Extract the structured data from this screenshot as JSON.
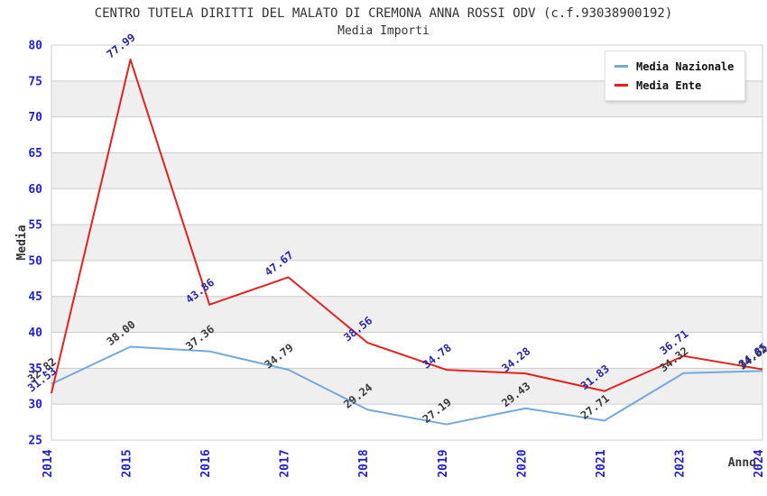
{
  "title": "CENTRO TUTELA DIRITTI DEL MALATO DI CREMONA ANNA ROSSI ODV (c.f.93038900192)",
  "subtitle": "Media Importi",
  "chart_data": {
    "type": "line",
    "categories": [
      "2014",
      "2015",
      "2016",
      "2017",
      "2018",
      "2019",
      "2020",
      "2021",
      "2023",
      "2024"
    ],
    "series": [
      {
        "name": "Media Nazionale",
        "color": "#74a9dc",
        "label_color": "#3a3a3a",
        "values": [
          32.82,
          38.0,
          37.36,
          34.79,
          29.24,
          27.19,
          29.43,
          27.71,
          34.32,
          34.62
        ]
      },
      {
        "name": "Media Ente",
        "color": "#e42020",
        "label_color": "#2828aa",
        "values": [
          31.53,
          77.99,
          43.86,
          47.67,
          38.56,
          34.78,
          34.28,
          31.83,
          36.71,
          34.85
        ]
      }
    ],
    "xlabel": "Anno",
    "ylabel": "Media",
    "ylim": [
      25,
      80
    ],
    "ytick_step": 5,
    "grid": true,
    "legend_position": "top-right",
    "colors": {
      "tick_label": "#2222cc",
      "grid_line": "#cccccc",
      "band_fill": "#efefef",
      "axis_title": "#333333",
      "title_text": "#333333"
    }
  }
}
